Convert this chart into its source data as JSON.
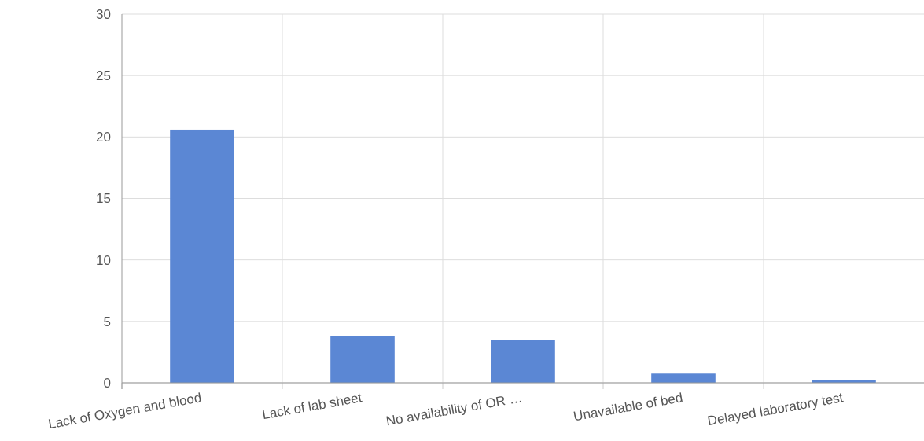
{
  "chart_data": {
    "type": "bar",
    "categories": [
      "Lack of Oxygen and blood",
      "Lack of lab sheet",
      "No availability of OR …",
      "Unavailable of bed",
      "Delayed laboratory test"
    ],
    "values": [
      20.6,
      3.8,
      3.5,
      0.75,
      0.25
    ],
    "color": "#5b87d4",
    "ylim": [
      0,
      30
    ],
    "yticks": [
      0,
      5,
      10,
      15,
      20,
      25,
      30
    ],
    "grid": true
  }
}
